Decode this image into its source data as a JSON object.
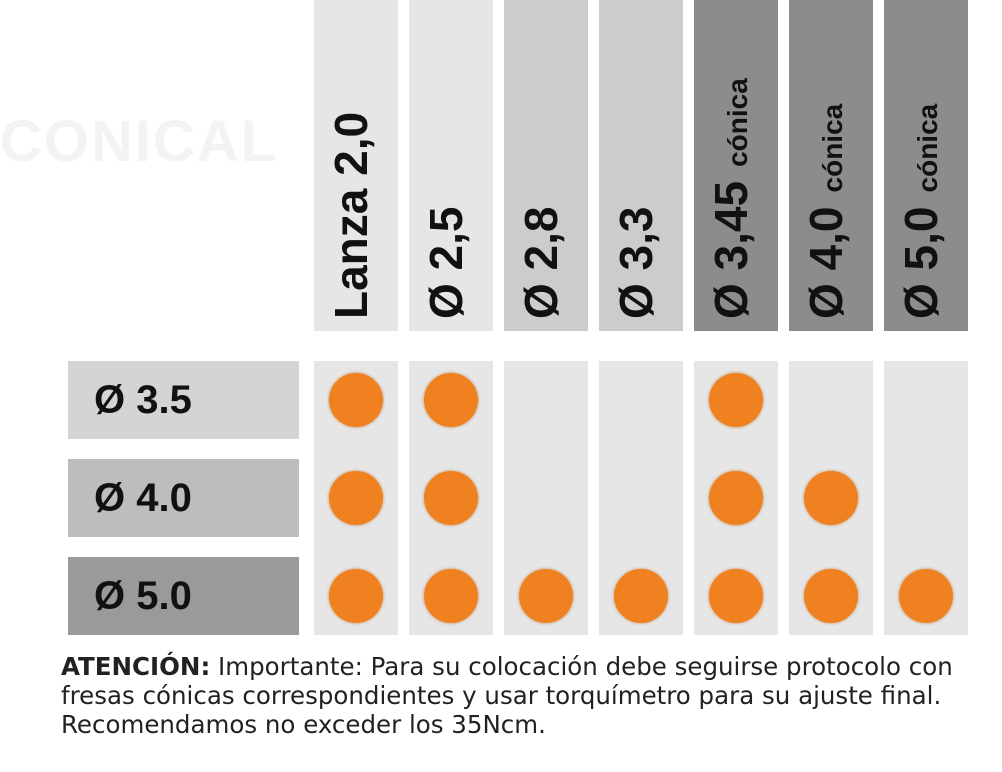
{
  "watermark": "CONICAL",
  "columns": [
    {
      "main": "Lanza 2,0",
      "sub": "",
      "color": "#e6e6e6"
    },
    {
      "main": "Ø 2,5",
      "sub": "",
      "color": "#e6e6e6"
    },
    {
      "main": "Ø 2,8",
      "sub": "",
      "color": "#cccccc"
    },
    {
      "main": "Ø 3,3",
      "sub": "",
      "color": "#cccccc"
    },
    {
      "main": "Ø 3,45",
      "sub": "cónica",
      "color": "#8c8c8c"
    },
    {
      "main": "Ø 4,0",
      "sub": "cónica",
      "color": "#8c8c8c"
    },
    {
      "main": "Ø 5,0",
      "sub": "cónica",
      "color": "#8c8c8c"
    }
  ],
  "rows": [
    {
      "label": "Ø 3.5",
      "color": "#d4d4d4",
      "marks": [
        true,
        true,
        false,
        false,
        true,
        false,
        false
      ]
    },
    {
      "label": "Ø 4.0",
      "color": "#bdbdbd",
      "marks": [
        true,
        true,
        false,
        false,
        true,
        true,
        false
      ]
    },
    {
      "label": "Ø 5.0",
      "color": "#9a9a9a",
      "marks": [
        true,
        true,
        true,
        true,
        true,
        true,
        true
      ]
    }
  ],
  "note": {
    "bold": "ATENCIÓN:",
    "text": " Importante: Para su colocación debe seguirse protocolo con fresas cónicas correspondientes y usar torquímetro para su ajuste final.  Recomendamos no exceder los 35Ncm."
  },
  "accent_color": "#ef8120"
}
